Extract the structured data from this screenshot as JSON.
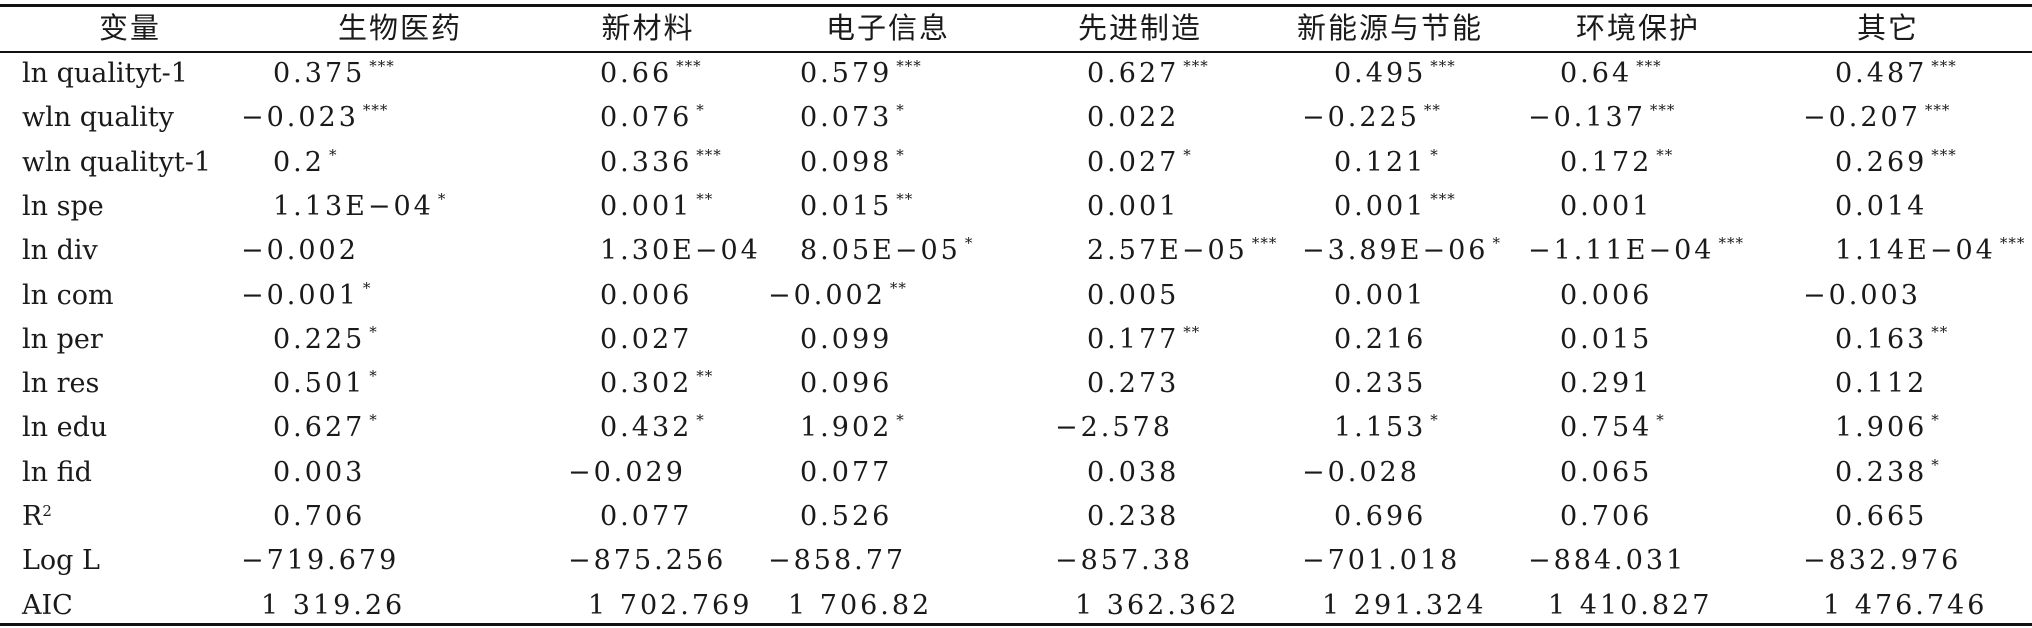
{
  "table": {
    "headers": [
      "变量",
      "生物医药",
      "新材料",
      "电子信息",
      "先进制造",
      "新能源与节能",
      "环境保护",
      "其它"
    ],
    "rows": [
      {
        "label": "ln qualityt-1",
        "cells": [
          {
            "v": "0.375",
            "s": "***"
          },
          {
            "v": "0.66",
            "s": "***"
          },
          {
            "v": "0.579",
            "s": "***"
          },
          {
            "v": "0.627",
            "s": "***"
          },
          {
            "v": "0.495",
            "s": "***"
          },
          {
            "v": "0.64",
            "s": "***"
          },
          {
            "v": "0.487",
            "s": "***"
          }
        ]
      },
      {
        "label": "wln quality",
        "cells": [
          {
            "v": "−0.023",
            "s": "***"
          },
          {
            "v": "0.076",
            "s": "*"
          },
          {
            "v": "0.073",
            "s": "*"
          },
          {
            "v": "0.022",
            "s": ""
          },
          {
            "v": "−0.225",
            "s": "**"
          },
          {
            "v": "−0.137",
            "s": "***"
          },
          {
            "v": "−0.207",
            "s": "***"
          }
        ]
      },
      {
        "label": "wln qualityt-1",
        "cells": [
          {
            "v": "0.2",
            "s": "*"
          },
          {
            "v": "0.336",
            "s": "***"
          },
          {
            "v": "0.098",
            "s": "*"
          },
          {
            "v": "0.027",
            "s": "*"
          },
          {
            "v": "0.121",
            "s": "*"
          },
          {
            "v": "0.172",
            "s": "**"
          },
          {
            "v": "0.269",
            "s": "***"
          }
        ]
      },
      {
        "label": "ln spe",
        "cells": [
          {
            "v": "1.13E−04",
            "s": "*"
          },
          {
            "v": "0.001",
            "s": "**"
          },
          {
            "v": "0.015",
            "s": "**"
          },
          {
            "v": "0.001",
            "s": ""
          },
          {
            "v": "0.001",
            "s": "***"
          },
          {
            "v": "0.001",
            "s": ""
          },
          {
            "v": "0.014",
            "s": ""
          }
        ]
      },
      {
        "label": "ln div",
        "cells": [
          {
            "v": "−0.002",
            "s": ""
          },
          {
            "v": "1.30E−04",
            "s": ""
          },
          {
            "v": "8.05E−05",
            "s": "*"
          },
          {
            "v": "2.57E−05",
            "s": "***"
          },
          {
            "v": "−3.89E−06",
            "s": "*"
          },
          {
            "v": "−1.11E−04",
            "s": "***"
          },
          {
            "v": "1.14E−04",
            "s": "***"
          }
        ]
      },
      {
        "label": "ln com",
        "cells": [
          {
            "v": "−0.001",
            "s": "*"
          },
          {
            "v": "0.006",
            "s": ""
          },
          {
            "v": "−0.002",
            "s": "**"
          },
          {
            "v": "0.005",
            "s": ""
          },
          {
            "v": "0.001",
            "s": ""
          },
          {
            "v": "0.006",
            "s": ""
          },
          {
            "v": "−0.003",
            "s": ""
          }
        ]
      },
      {
        "label": "ln per",
        "cells": [
          {
            "v": "0.225",
            "s": "*"
          },
          {
            "v": "0.027",
            "s": ""
          },
          {
            "v": "0.099",
            "s": ""
          },
          {
            "v": "0.177",
            "s": "**"
          },
          {
            "v": "0.216",
            "s": ""
          },
          {
            "v": "0.015",
            "s": ""
          },
          {
            "v": "0.163",
            "s": "**"
          }
        ]
      },
      {
        "label": "ln res",
        "cells": [
          {
            "v": "0.501",
            "s": "*"
          },
          {
            "v": "0.302",
            "s": "**"
          },
          {
            "v": "0.096",
            "s": ""
          },
          {
            "v": "0.273",
            "s": ""
          },
          {
            "v": "0.235",
            "s": ""
          },
          {
            "v": "0.291",
            "s": ""
          },
          {
            "v": "0.112",
            "s": ""
          }
        ]
      },
      {
        "label": "ln edu",
        "cells": [
          {
            "v": "0.627",
            "s": "*"
          },
          {
            "v": "0.432",
            "s": "*"
          },
          {
            "v": "1.902",
            "s": "*"
          },
          {
            "v": "−2.578",
            "s": ""
          },
          {
            "v": "1.153",
            "s": "*"
          },
          {
            "v": "0.754",
            "s": "*"
          },
          {
            "v": "1.906",
            "s": "*"
          }
        ]
      },
      {
        "label": "ln fid",
        "cells": [
          {
            "v": "0.003",
            "s": ""
          },
          {
            "v": "−0.029",
            "s": ""
          },
          {
            "v": "0.077",
            "s": ""
          },
          {
            "v": "0.038",
            "s": ""
          },
          {
            "v": "−0.028",
            "s": ""
          },
          {
            "v": "0.065",
            "s": ""
          },
          {
            "v": "0.238",
            "s": "*"
          }
        ]
      },
      {
        "label": "R",
        "label_sup": "2",
        "cells": [
          {
            "v": "0.706",
            "s": ""
          },
          {
            "v": "0.077",
            "s": ""
          },
          {
            "v": "0.526",
            "s": ""
          },
          {
            "v": "0.238",
            "s": ""
          },
          {
            "v": "0.696",
            "s": ""
          },
          {
            "v": "0.706",
            "s": ""
          },
          {
            "v": "0.665",
            "s": ""
          }
        ]
      },
      {
        "label": "Log L",
        "cells": [
          {
            "v": "−719.679",
            "s": ""
          },
          {
            "v": "−875.256",
            "s": ""
          },
          {
            "v": "−858.77",
            "s": ""
          },
          {
            "v": "−857.38",
            "s": ""
          },
          {
            "v": "−701.018",
            "s": ""
          },
          {
            "v": "−884.031",
            "s": ""
          },
          {
            "v": "−832.976",
            "s": ""
          }
        ]
      },
      {
        "label": "AIC",
        "cells": [
          {
            "v": "1 319.26",
            "s": ""
          },
          {
            "v": "1 702.769",
            "s": ""
          },
          {
            "v": "1 706.82",
            "s": ""
          },
          {
            "v": "1 362.362",
            "s": ""
          },
          {
            "v": "1 291.324",
            "s": ""
          },
          {
            "v": "1 410.827",
            "s": ""
          },
          {
            "v": "1 476.746",
            "s": ""
          }
        ]
      }
    ]
  }
}
